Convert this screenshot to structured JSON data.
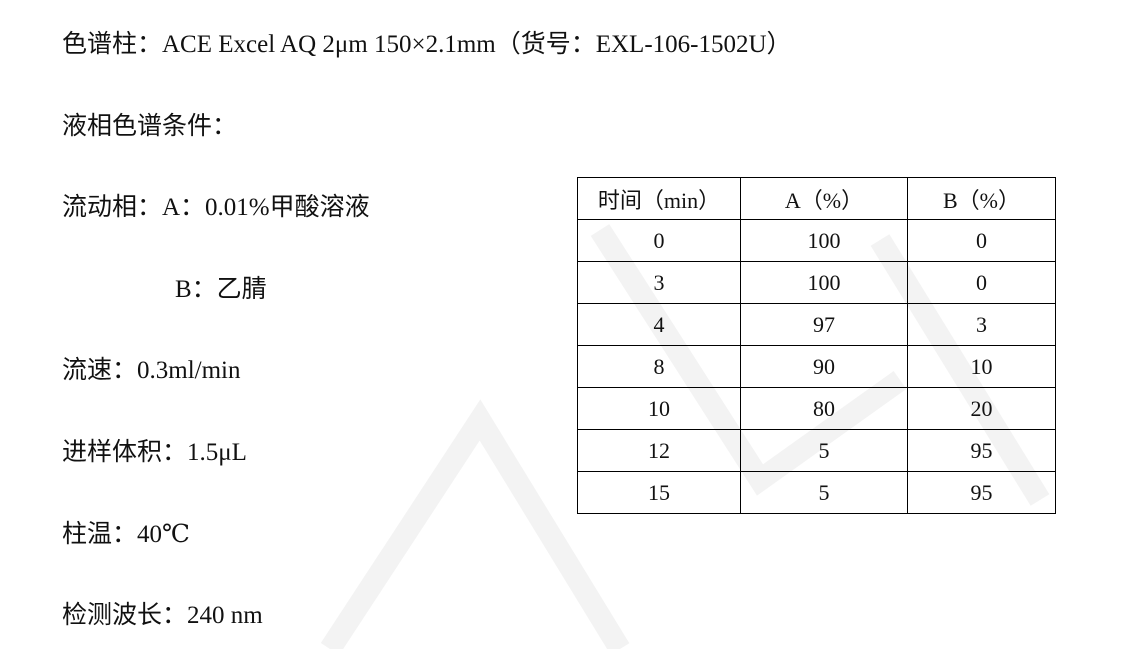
{
  "lines": {
    "column": "色谱柱：ACE Excel AQ 2μm 150×2.1mm（货号：EXL-106-1502U）",
    "conditions": "液相色谱条件：",
    "mobile_a": "流动相：A：0.01%甲酸溶液",
    "mobile_b": "B：乙腈",
    "flow": "流速：0.3ml/min",
    "injection": "进样体积：1.5μL",
    "temperature": "柱温：40℃",
    "wavelength": "检测波长：240 nm"
  },
  "gradient_table": {
    "headers": [
      "时间（min）",
      "A（%）",
      "B（%）"
    ],
    "rows": [
      [
        "0",
        "100",
        "0"
      ],
      [
        "3",
        "100",
        "0"
      ],
      [
        "4",
        "97",
        "3"
      ],
      [
        "8",
        "90",
        "10"
      ],
      [
        "10",
        "80",
        "20"
      ],
      [
        "12",
        "5",
        "95"
      ],
      [
        "15",
        "5",
        "95"
      ]
    ]
  }
}
